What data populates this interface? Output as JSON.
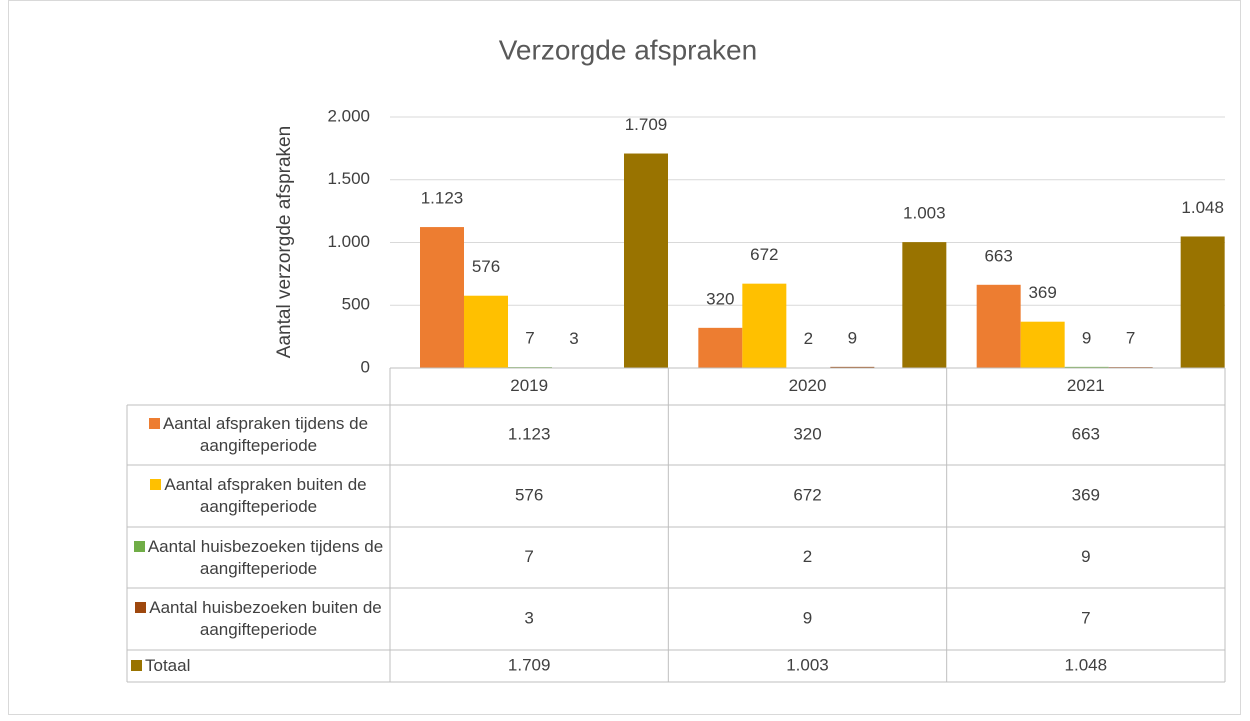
{
  "chart_data": {
    "type": "bar",
    "title": "Verzorgde afspraken",
    "y_label": "Aantal verzorgde afspraken",
    "categories": [
      "2019",
      "2020",
      "2021"
    ],
    "series": [
      {
        "name": "Aantal afspraken tijdens de aangifteperiode",
        "color": "#ed7d31",
        "values": [
          1123,
          320,
          663
        ],
        "value_labels": [
          "1.123",
          "320",
          "663"
        ]
      },
      {
        "name": "Aantal afspraken buiten de aangifteperiode",
        "color": "#ffc000",
        "values": [
          576,
          672,
          369
        ],
        "value_labels": [
          "576",
          "672",
          "369"
        ]
      },
      {
        "name": "Aantal huisbezoeken tijdens de aangifteperiode",
        "color": "#70ad47",
        "values": [
          7,
          2,
          9
        ],
        "value_labels": [
          "7",
          "2",
          "9"
        ]
      },
      {
        "name": "Aantal huisbezoeken buiten de aangifteperiode",
        "color": "#9e480e",
        "values": [
          3,
          9,
          7
        ],
        "value_labels": [
          "3",
          "9",
          "7"
        ]
      },
      {
        "name": "Totaal",
        "color": "#997300",
        "values": [
          1709,
          1003,
          1048
        ],
        "value_labels": [
          "1.709",
          "1.003",
          "1.048"
        ]
      }
    ],
    "ylim": [
      0,
      2000
    ],
    "yticks": [
      0,
      500,
      {
        "value": 1000,
        "label": "1.000"
      },
      {
        "value": 1500,
        "label": "1.500"
      },
      {
        "value": 2000,
        "label": "2.000"
      }
    ],
    "grid": true,
    "data_table": true
  }
}
